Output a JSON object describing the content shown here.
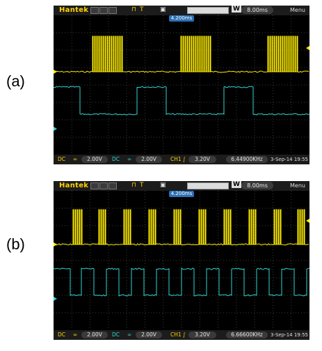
{
  "panels": [
    {
      "label": "(a)",
      "scope": {
        "brand": "Hantek",
        "run_mode": "T",
        "menu_label": "Menu",
        "timebase": "8.00ms",
        "time_mode_letter": "W",
        "trigger_position": "4.200ms",
        "ch1_scale": "2.00V",
        "ch2_scale": "2.00V",
        "trigger_channel": "CH1",
        "trigger_level": "3.20V",
        "frequency": "6.44900KHz",
        "datetime": "3-Sep-14 19:55"
      }
    },
    {
      "label": "(b)",
      "scope": {
        "brand": "Hantek",
        "run_mode": "T",
        "menu_label": "Menu",
        "timebase": "8.00ms",
        "time_mode_letter": "W",
        "trigger_position": "4.200ms",
        "ch1_scale": "2.00V",
        "ch2_scale": "2.00V",
        "trigger_channel": "CH1",
        "trigger_level": "3.20V",
        "frequency": "6.66600KHz",
        "datetime": "3-Sep-14 19:55"
      }
    }
  ],
  "colors": {
    "ch1": "#ffee00",
    "ch2": "#2fd6d0",
    "grid": "#3a3a3a",
    "screen": "#000000"
  }
}
